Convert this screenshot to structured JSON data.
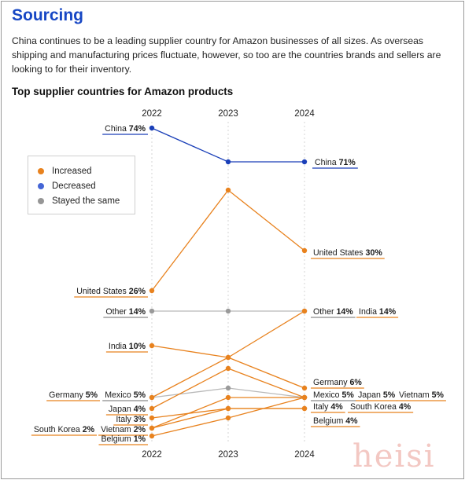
{
  "page": {
    "title": "Sourcing",
    "intro": "China continues to be a leading supplier country for Amazon businesses of all sizes. As overseas shipping and manufacturing prices fluctuate, however, so too are the countries brands and sellers are looking to for their inventory.",
    "watermark": "heisi"
  },
  "legend": {
    "items": [
      {
        "label": "Increased",
        "color": "#e8821e"
      },
      {
        "label": "Decreased",
        "color": "#4566d6"
      },
      {
        "label": "Stayed the same",
        "color": "#969696"
      }
    ]
  },
  "colors": {
    "increased": "#e8821e",
    "decreased": "#1a3fb8",
    "same": "#b9b9b9",
    "label_underline_increased": "#e8821e",
    "label_underline_decreased": "#1a3fb8",
    "label_underline_same": "#8a8a8a"
  },
  "chart_data": {
    "type": "line",
    "title": "Top supplier countries for Amazon products",
    "x": [
      "2022",
      "2023",
      "2024"
    ],
    "grid": "dashed vertical guides at each year",
    "series": [
      {
        "name": "China",
        "values": [
          74,
          65,
          71
        ],
        "trend": "decreased",
        "labels": [
          "China 74%",
          "",
          "China 71%"
        ]
      },
      {
        "name": "United States",
        "values": [
          26,
          43,
          30
        ],
        "trend": "increased",
        "labels": [
          "United States 26%",
          "",
          "United States 30%"
        ]
      },
      {
        "name": "Other",
        "values": [
          14,
          14,
          14
        ],
        "trend": "same",
        "labels": [
          "Other 14%",
          "",
          "Other 14%"
        ]
      },
      {
        "name": "India",
        "values": [
          10,
          8,
          14
        ],
        "trend": "increased",
        "labels": [
          "India 10%",
          "",
          "India 14%"
        ]
      },
      {
        "name": "Germany",
        "values": [
          5,
          7,
          6
        ],
        "trend": "increased",
        "labels": [
          "Germany 5%",
          "",
          "Germany 6%"
        ]
      },
      {
        "name": "Mexico",
        "values": [
          5,
          5.5,
          5
        ],
        "trend": "same",
        "labels": [
          "Mexico 5%",
          "",
          "Mexico 5%"
        ]
      },
      {
        "name": "Japan",
        "values": [
          4,
          6,
          5
        ],
        "trend": "increased",
        "labels": [
          "Japan 4%",
          "",
          "Japan 5%"
        ]
      },
      {
        "name": "Vietnam",
        "values": [
          2,
          3,
          5
        ],
        "trend": "increased",
        "labels": [
          "Vietnam 2%",
          "",
          "Vietnam 5%"
        ]
      },
      {
        "name": "Italy",
        "values": [
          3,
          4,
          4
        ],
        "trend": "increased",
        "labels": [
          "Italy 3%",
          "",
          "Italy 4%"
        ]
      },
      {
        "name": "South Korea",
        "values": [
          2,
          4,
          4
        ],
        "trend": "increased",
        "labels": [
          "South Korea 2%",
          "",
          "South Korea 4%"
        ]
      },
      {
        "name": "Belgium",
        "values": [
          1,
          3,
          4
        ],
        "trend": "increased",
        "labels": [
          "Belgium 1%",
          "",
          "Belgium 4%"
        ]
      }
    ]
  }
}
